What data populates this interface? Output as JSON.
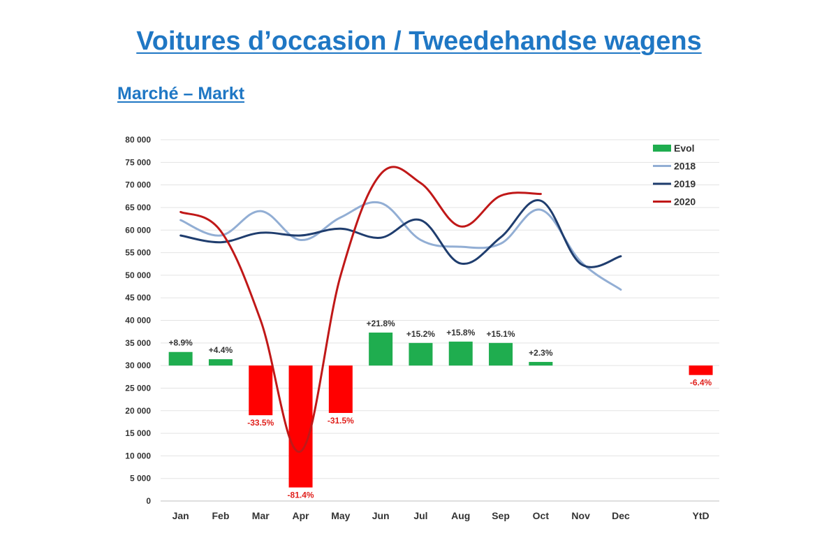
{
  "page": {
    "title": "Voitures d’occasion / Tweedehandse wagens",
    "subtitle": "Marché – Markt"
  },
  "chart_data": {
    "type": "bar",
    "categories": [
      "Jan",
      "Feb",
      "Mar",
      "Apr",
      "May",
      "Jun",
      "Jul",
      "Aug",
      "Sep",
      "Oct",
      "Nov",
      "Dec",
      "",
      "YtD"
    ],
    "ylim": [
      0,
      80000
    ],
    "yticks": [
      0,
      5000,
      10000,
      15000,
      20000,
      25000,
      30000,
      35000,
      40000,
      45000,
      50000,
      55000,
      60000,
      65000,
      70000,
      75000,
      80000
    ],
    "ytick_labels": [
      "0",
      "5 000",
      "10 000",
      "15 000",
      "20 000",
      "25 000",
      "30 000",
      "35 000",
      "40 000",
      "45 000",
      "50 000",
      "55 000",
      "60 000",
      "65 000",
      "70 000",
      "75 000",
      "80 000"
    ],
    "grid": true,
    "legend_position": "top-right",
    "bar_baseline": 30000,
    "colors": {
      "positive": "#1fad4f",
      "negative": "#ff0000",
      "negative_label": "#e0201c",
      "2018": "#92aed4",
      "2019": "#1f3d6e",
      "2020": "#c01818"
    },
    "series": [
      {
        "name": "Evol",
        "kind": "bar",
        "values": [
          33000,
          31400,
          19000,
          3000,
          19500,
          37300,
          35000,
          35300,
          35000,
          30800,
          null,
          null,
          null,
          27900
        ],
        "labels": [
          "+8.9%",
          "+4.4%",
          "-33.5%",
          "-81.4%",
          "-31.5%",
          "+21.8%",
          "+15.2%",
          "+15.8%",
          "+15.1%",
          "+2.3%",
          "",
          "",
          "",
          "-6.4%"
        ]
      },
      {
        "name": "2018",
        "kind": "line",
        "values": [
          62200,
          58800,
          64200,
          57800,
          62800,
          66000,
          57800,
          56300,
          57000,
          64500,
          53000,
          46800,
          null,
          null
        ]
      },
      {
        "name": "2019",
        "kind": "line",
        "values": [
          58800,
          57300,
          59400,
          58800,
          60300,
          58300,
          62200,
          52600,
          58400,
          66500,
          52500,
          54200,
          null,
          null
        ]
      },
      {
        "name": "2020",
        "kind": "line",
        "values": [
          64000,
          59800,
          40000,
          11000,
          50000,
          72400,
          70400,
          60800,
          67600,
          68000,
          null,
          null,
          null,
          null
        ]
      }
    ]
  }
}
